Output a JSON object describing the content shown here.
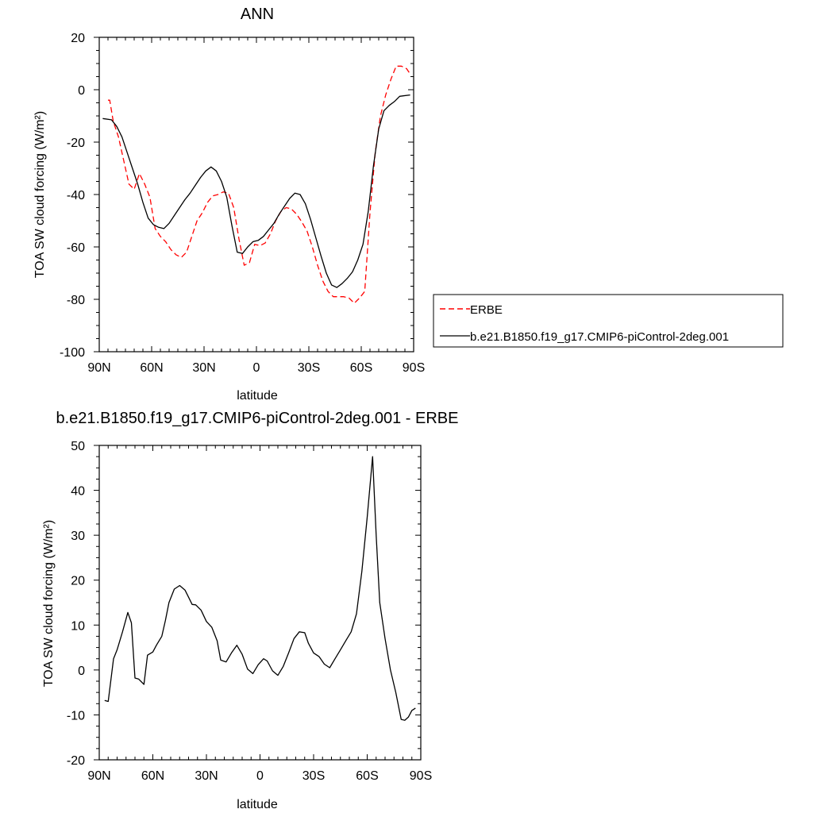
{
  "chart_data": [
    {
      "type": "line",
      "title": "ANN",
      "xlabel": "latitude",
      "ylabel": "TOA SW cloud forcing (W/m²)",
      "xlim": [
        90,
        -90
      ],
      "ylim": [
        -100,
        20
      ],
      "xticks": [
        90,
        60,
        30,
        0,
        -30,
        -60,
        -90
      ],
      "xtick_labels": [
        "90N",
        "60N",
        "30N",
        "0",
        "30S",
        "60S",
        "90S"
      ],
      "yticks": [
        -100,
        -80,
        -60,
        -40,
        -20,
        0,
        20
      ],
      "ytick_labels": [
        "-100",
        "-80",
        "-60",
        "-40",
        "-20",
        "0",
        "20"
      ],
      "grid": false,
      "legend_position": "right",
      "series": [
        {
          "name": "ERBE",
          "color": "#ff0000",
          "dash": "dashed",
          "x": [
            85,
            84,
            82,
            79,
            76,
            73,
            70,
            67,
            64,
            61,
            58,
            55,
            52,
            49,
            46,
            43,
            40,
            37,
            34,
            31,
            28,
            25,
            22,
            19,
            16,
            13,
            10,
            7,
            4,
            1,
            -2,
            -5,
            -8,
            -11,
            -14,
            -17,
            -20,
            -23,
            -26,
            -29,
            -32,
            -35,
            -38,
            -41,
            -44,
            -47,
            -50,
            -53,
            -56,
            -59,
            -62,
            -65,
            -68,
            -71,
            -74,
            -77,
            -80,
            -83,
            -86,
            -88
          ],
          "y": [
            -4,
            -4,
            -12,
            -18,
            -27,
            -36,
            -38,
            -32,
            -36,
            -41,
            -53,
            -56,
            -58,
            -61,
            -63,
            -64,
            -62,
            -56,
            -50,
            -47,
            -43,
            -40.5,
            -40,
            -39,
            -39.5,
            -45,
            -57,
            -67,
            -66,
            -59,
            -59.5,
            -58.5,
            -55,
            -50,
            -46.5,
            -45,
            -45.5,
            -47.5,
            -50.5,
            -54,
            -60,
            -67,
            -73,
            -77,
            -79,
            -79,
            -79,
            -79.5,
            -81.5,
            -79.5,
            -77,
            -47,
            -24,
            -10,
            -2,
            4,
            9,
            9,
            8,
            6
          ]
        },
        {
          "name": "b.e21.B1850.f19_g17.CMIP6-piControl-2deg.001",
          "color": "#000000",
          "dash": "solid",
          "x": [
            88,
            83,
            80,
            77,
            74,
            71,
            68,
            65,
            62,
            59,
            56,
            53,
            50,
            47,
            44,
            41,
            38,
            35,
            32,
            29,
            26,
            23,
            20,
            17,
            14,
            11,
            8,
            5,
            2,
            -1,
            -4,
            -7,
            -10,
            -13,
            -16,
            -19,
            -22,
            -25,
            -28,
            -31,
            -34,
            -37,
            -40,
            -43,
            -46,
            -49,
            -52,
            -55,
            -58,
            -61,
            -64,
            -67,
            -70,
            -73,
            -76,
            -79,
            -82,
            -88
          ],
          "y": [
            -11,
            -11.5,
            -14,
            -18,
            -24,
            -30,
            -36,
            -43,
            -49,
            -51.5,
            -52.5,
            -53,
            -51,
            -48,
            -45,
            -42,
            -39.5,
            -36.5,
            -33.5,
            -31,
            -29.5,
            -31,
            -35,
            -41,
            -52,
            -62,
            -62.5,
            -60,
            -58,
            -57.5,
            -56,
            -53.5,
            -51,
            -47.5,
            -44.5,
            -41.5,
            -39.5,
            -40,
            -43.5,
            -49.5,
            -56.5,
            -63.5,
            -70,
            -74.5,
            -75.5,
            -74,
            -72,
            -69.5,
            -65,
            -59,
            -46.5,
            -29,
            -15,
            -8,
            -6,
            -4.5,
            -2.5,
            -2
          ]
        }
      ]
    },
    {
      "type": "line",
      "title": "b.e21.B1850.f19_g17.CMIP6-piControl-2deg.001 - ERBE",
      "xlabel": "latitude",
      "ylabel": "TOA SW cloud forcing (W/m²)",
      "xlim": [
        90,
        -90
      ],
      "ylim": [
        -20,
        50
      ],
      "xticks": [
        90,
        60,
        30,
        0,
        -30,
        -60,
        -90
      ],
      "xtick_labels": [
        "90N",
        "60N",
        "30N",
        "0",
        "30S",
        "60S",
        "90S"
      ],
      "yticks": [
        -20,
        -10,
        0,
        10,
        20,
        30,
        40,
        50
      ],
      "ytick_labels": [
        "-20",
        "-10",
        "0",
        "10",
        "20",
        "30",
        "40",
        "50"
      ],
      "grid": false,
      "series": [
        {
          "color": "#000000",
          "dash": "solid",
          "x": [
            87,
            85,
            82,
            80,
            77,
            74,
            72,
            70,
            68,
            65,
            63,
            60,
            58,
            55,
            53,
            51,
            48,
            45,
            42,
            40,
            38,
            36,
            33,
            30,
            27,
            24,
            22,
            19,
            16,
            13,
            10,
            7,
            4,
            1,
            -2,
            -4,
            -7,
            -10,
            -13,
            -16,
            -19,
            -22,
            -25,
            -27,
            -30,
            -33,
            -36,
            -39,
            -42,
            -45,
            -48,
            -51,
            -54,
            -57,
            -60,
            -63,
            -65,
            -67,
            -70,
            -73,
            -76,
            -79,
            -81,
            -83,
            -85,
            -87
          ],
          "y": [
            -6.8,
            -7,
            2.5,
            4.5,
            8.5,
            12.8,
            10.5,
            -1.8,
            -2,
            -3.2,
            3.3,
            4,
            5.5,
            7.5,
            11,
            15,
            18,
            18.8,
            17.8,
            16.2,
            14.6,
            14.5,
            13.3,
            10.8,
            9.5,
            6.5,
            2.2,
            1.8,
            3.8,
            5.5,
            3.5,
            0.2,
            -0.8,
            1.2,
            2.5,
            2,
            -0.2,
            -1.2,
            0.8,
            3.8,
            7,
            8.5,
            8.3,
            6,
            3.8,
            3,
            1.3,
            0.5,
            2.5,
            4.5,
            6.5,
            8.5,
            12.5,
            22,
            34,
            47.5,
            30,
            15,
            7,
            0,
            -5,
            -11,
            -11.2,
            -10.5,
            -9,
            -8.5
          ]
        }
      ]
    }
  ]
}
